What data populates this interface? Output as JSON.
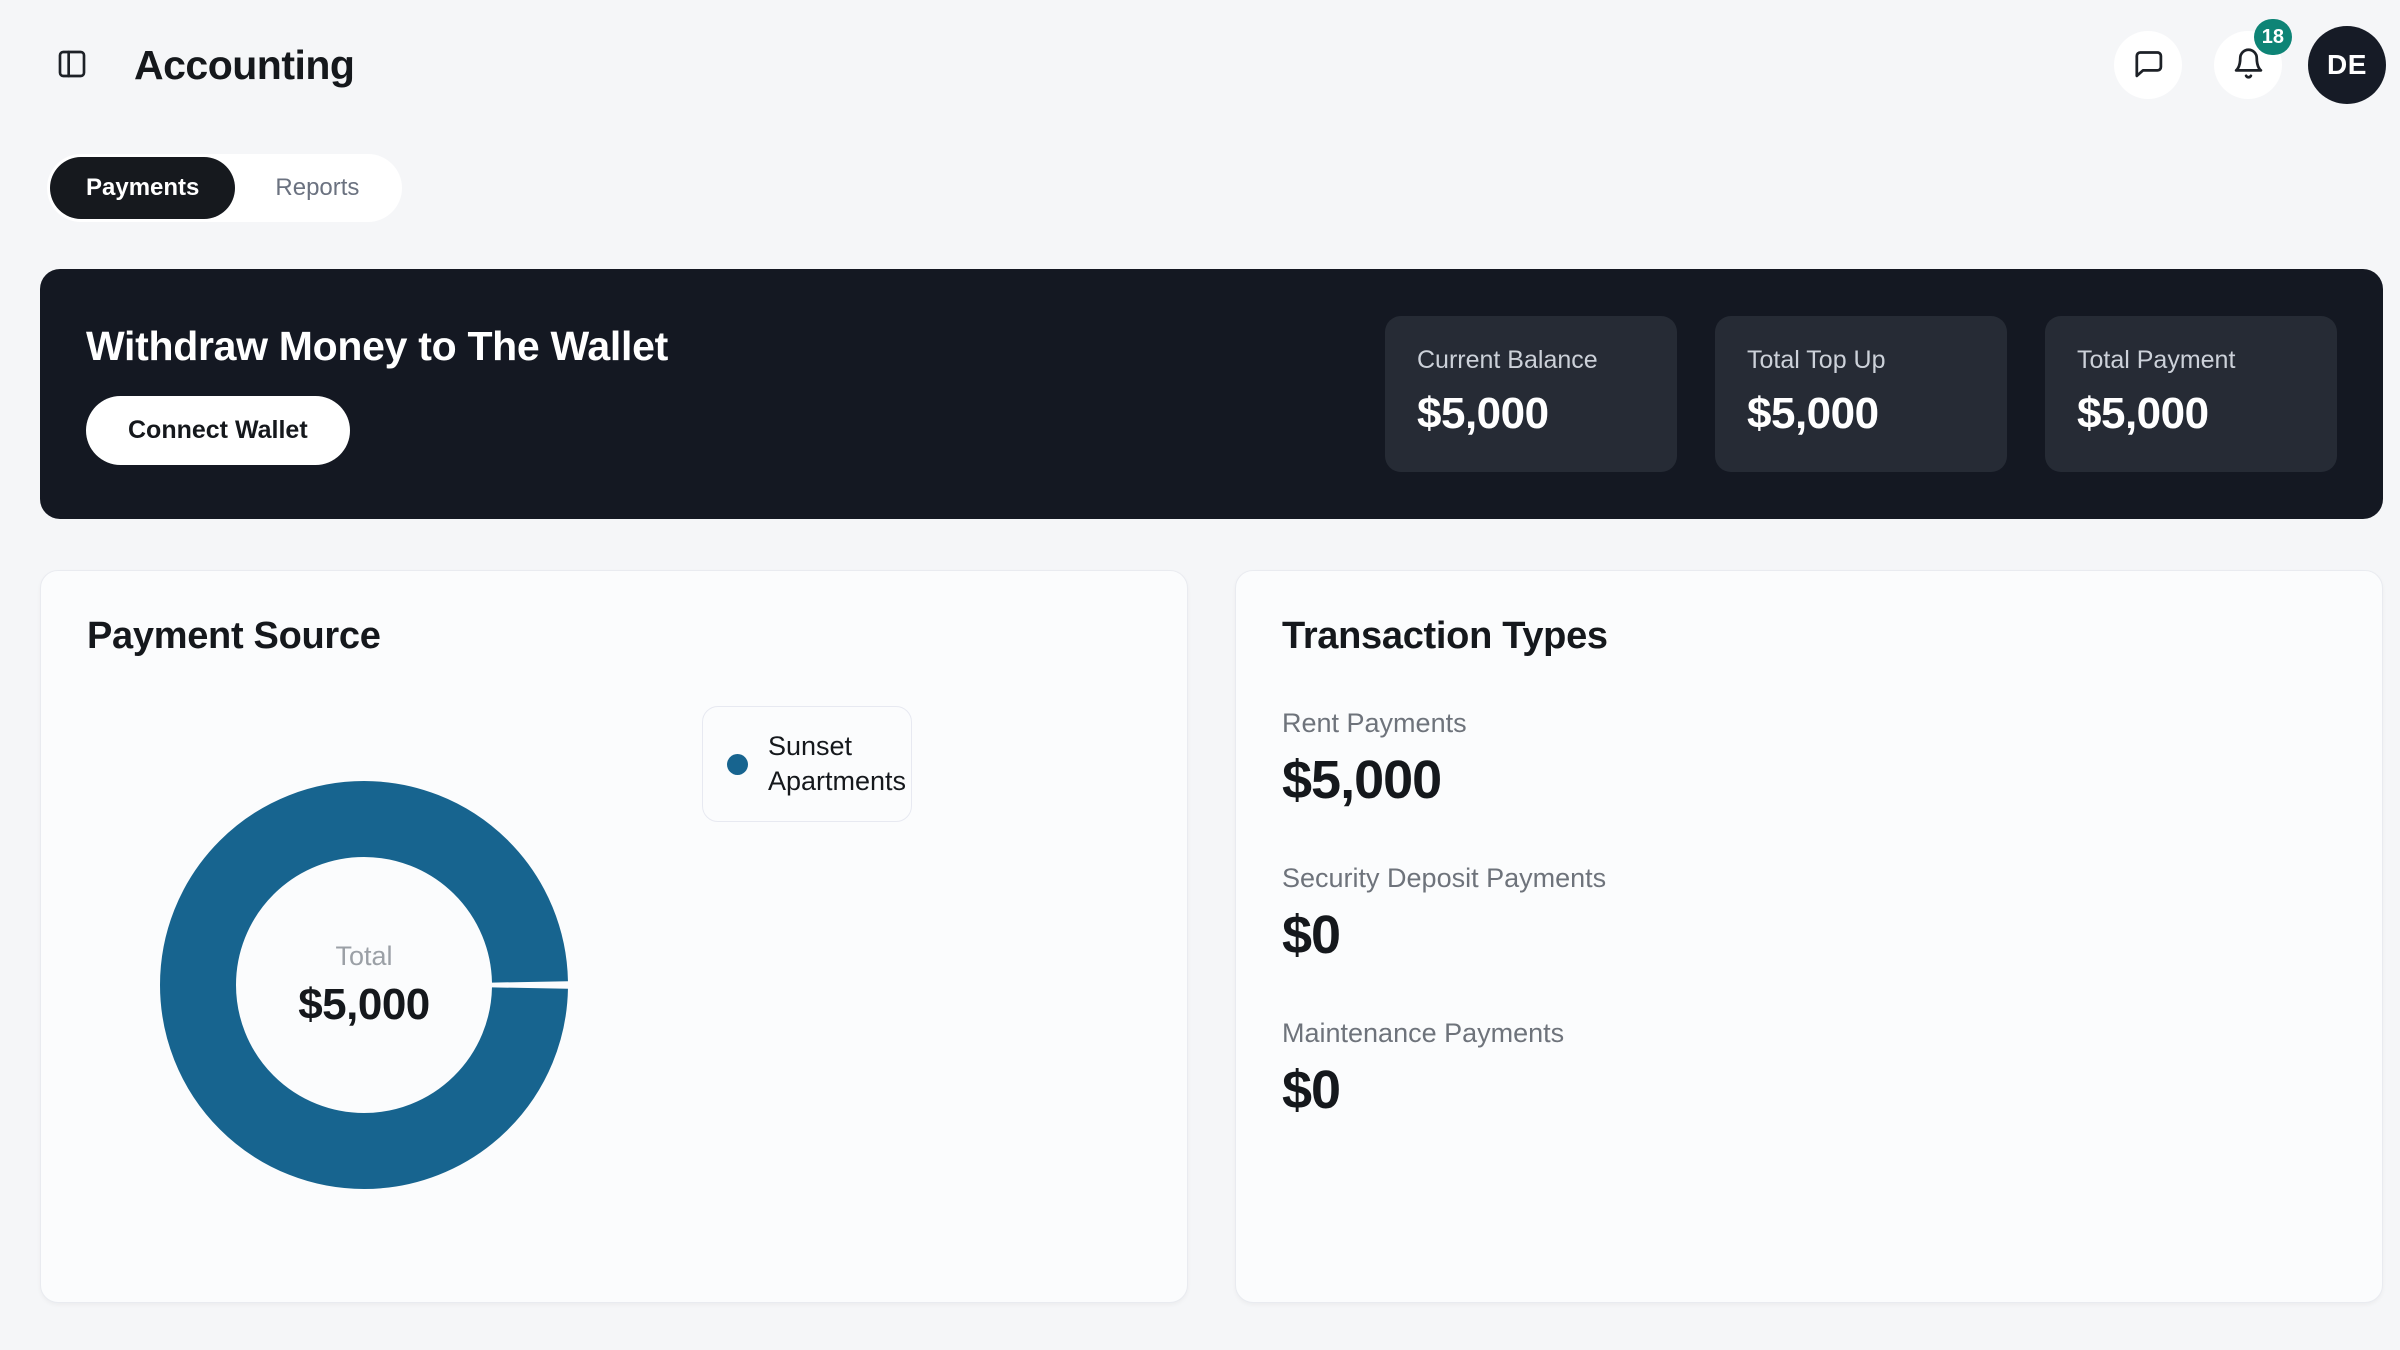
{
  "header": {
    "title": "Accounting",
    "notification_count": "18",
    "avatar_initials": "DE"
  },
  "tabs": [
    {
      "label": "Payments",
      "active": true
    },
    {
      "label": "Reports",
      "active": false
    }
  ],
  "banner": {
    "title": "Withdraw Money to The Wallet",
    "button_label": "Connect Wallet",
    "stats": [
      {
        "label": "Current Balance",
        "value": "$5,000"
      },
      {
        "label": "Total Top Up",
        "value": "$5,000"
      },
      {
        "label": "Total Payment",
        "value": "$5,000"
      }
    ]
  },
  "payment_source": {
    "title": "Payment Source"
  },
  "chart_data": {
    "type": "pie",
    "donut": true,
    "title": "Payment Source",
    "labels": [
      "Sunset Apartments"
    ],
    "values": [
      5000
    ],
    "colors": [
      "#17648f"
    ],
    "center_label": "Total",
    "center_value": "$5,000",
    "legend_position": "right",
    "units": "USD"
  },
  "transaction_types": {
    "title": "Transaction Types",
    "items": [
      {
        "label": "Rent Payments",
        "value": "$5,000"
      },
      {
        "label": "Security Deposit Payments",
        "value": "$0"
      },
      {
        "label": "Maintenance Payments",
        "value": "$0"
      }
    ]
  },
  "colors": {
    "badge": "#0e8476",
    "chart_primary": "#17648f",
    "banner_bg": "#141822"
  }
}
